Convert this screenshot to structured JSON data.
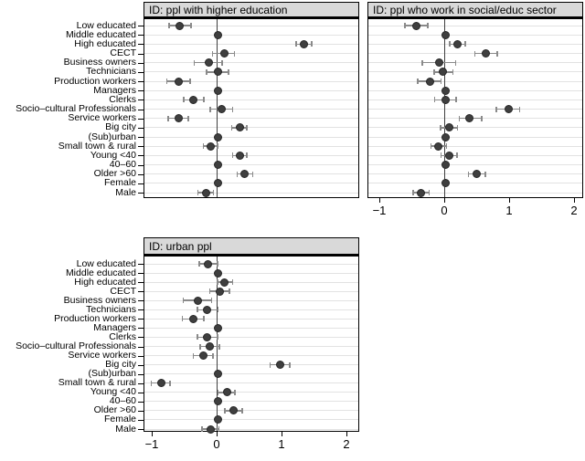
{
  "figure": {
    "background": "#ffffff",
    "panel_header_bg": "#d9d9d9",
    "border_color": "#000000",
    "gridline_color": "#e2e2e2",
    "zero_line_color": "#3f3f3f",
    "ci_color": "#8a8a8a",
    "dot_color": "#3f3f3f"
  },
  "chart_data": {
    "type": "scatter",
    "subtype": "coefficient-dot-whisker",
    "grid": "horizontal",
    "legend": null,
    "xlabel": "",
    "ylabel": "",
    "xlim": [
      -1.1,
      2.2
    ],
    "x_tick_values": [
      -1,
      0,
      1,
      2
    ],
    "x_tick_labels": [
      "−1",
      "0",
      "1",
      "2"
    ],
    "categories": [
      "Low educated",
      "Middle educated",
      "High educated",
      "CECT",
      "Business owners",
      "Technicians",
      "Production workers",
      "Managers",
      "Clerks",
      "Socio–cultural Professionals",
      "Service workers",
      "Big city",
      "(Sub)urban",
      "Small town & rural",
      "Young <40",
      "40–60",
      "Older >60",
      "Female",
      "Male"
    ],
    "panels": [
      {
        "title": "ID: ppl with higher education",
        "show_x_axis": false,
        "show_y_labels": true,
        "estimates": [
          {
            "value": -0.58,
            "lo": -0.75,
            "hi": -0.41
          },
          {
            "value": 0.0,
            "lo": null,
            "hi": null
          },
          {
            "value": 1.33,
            "lo": 1.21,
            "hi": 1.45
          },
          {
            "value": 0.1,
            "lo": -0.08,
            "hi": 0.26
          },
          {
            "value": -0.14,
            "lo": -0.36,
            "hi": 0.07
          },
          {
            "value": 0.0,
            "lo": -0.17,
            "hi": 0.17
          },
          {
            "value": -0.6,
            "lo": -0.78,
            "hi": -0.42
          },
          {
            "value": 0.0,
            "lo": null,
            "hi": null
          },
          {
            "value": -0.37,
            "lo": -0.52,
            "hi": -0.21
          },
          {
            "value": 0.06,
            "lo": -0.11,
            "hi": 0.23
          },
          {
            "value": -0.6,
            "lo": -0.76,
            "hi": -0.45
          },
          {
            "value": 0.34,
            "lo": 0.22,
            "hi": 0.45
          },
          {
            "value": 0.0,
            "lo": null,
            "hi": null
          },
          {
            "value": -0.11,
            "lo": -0.22,
            "hi": 0.0
          },
          {
            "value": 0.34,
            "lo": 0.23,
            "hi": 0.45
          },
          {
            "value": 0.0,
            "lo": null,
            "hi": null
          },
          {
            "value": 0.42,
            "lo": 0.3,
            "hi": 0.54
          },
          {
            "value": 0.0,
            "lo": null,
            "hi": null
          },
          {
            "value": -0.18,
            "lo": -0.3,
            "hi": -0.06
          }
        ]
      },
      {
        "title": "ID: ppl who work in social/educ sector",
        "show_x_axis": true,
        "show_y_labels": false,
        "estimates": [
          {
            "value": -0.44,
            "lo": -0.62,
            "hi": -0.27
          },
          {
            "value": 0.0,
            "lo": null,
            "hi": null
          },
          {
            "value": 0.19,
            "lo": 0.07,
            "hi": 0.31
          },
          {
            "value": 0.63,
            "lo": 0.46,
            "hi": 0.8
          },
          {
            "value": -0.09,
            "lo": -0.35,
            "hi": 0.16
          },
          {
            "value": -0.03,
            "lo": -0.17,
            "hi": 0.12
          },
          {
            "value": -0.23,
            "lo": -0.42,
            "hi": -0.06
          },
          {
            "value": 0.0,
            "lo": null,
            "hi": null
          },
          {
            "value": 0.0,
            "lo": -0.16,
            "hi": 0.17
          },
          {
            "value": 0.98,
            "lo": 0.79,
            "hi": 1.15
          },
          {
            "value": 0.38,
            "lo": 0.22,
            "hi": 0.56
          },
          {
            "value": 0.07,
            "lo": -0.07,
            "hi": 0.19
          },
          {
            "value": 0.0,
            "lo": null,
            "hi": null
          },
          {
            "value": -0.1,
            "lo": -0.22,
            "hi": 0.02
          },
          {
            "value": 0.07,
            "lo": -0.06,
            "hi": 0.18
          },
          {
            "value": 0.0,
            "lo": null,
            "hi": null
          },
          {
            "value": 0.49,
            "lo": 0.36,
            "hi": 0.62
          },
          {
            "value": 0.0,
            "lo": null,
            "hi": null
          },
          {
            "value": -0.38,
            "lo": -0.49,
            "hi": -0.25
          }
        ]
      },
      {
        "title": "ID: urban ppl",
        "show_x_axis": true,
        "show_y_labels": true,
        "estimates": [
          {
            "value": -0.15,
            "lo": -0.28,
            "hi": 0.0
          },
          {
            "value": 0.0,
            "lo": null,
            "hi": null
          },
          {
            "value": 0.11,
            "lo": 0.0,
            "hi": 0.23
          },
          {
            "value": 0.03,
            "lo": -0.12,
            "hi": 0.18
          },
          {
            "value": -0.3,
            "lo": -0.53,
            "hi": -0.09
          },
          {
            "value": -0.16,
            "lo": -0.31,
            "hi": 0.01
          },
          {
            "value": -0.37,
            "lo": -0.54,
            "hi": -0.21
          },
          {
            "value": 0.0,
            "lo": null,
            "hi": null
          },
          {
            "value": -0.16,
            "lo": -0.31,
            "hi": 0.0
          },
          {
            "value": -0.12,
            "lo": -0.27,
            "hi": 0.03
          },
          {
            "value": -0.22,
            "lo": -0.37,
            "hi": -0.07
          },
          {
            "value": 0.96,
            "lo": 0.81,
            "hi": 1.11
          },
          {
            "value": 0.0,
            "lo": null,
            "hi": null
          },
          {
            "value": -0.87,
            "lo": -1.02,
            "hi": -0.73
          },
          {
            "value": 0.15,
            "lo": 0.01,
            "hi": 0.27
          },
          {
            "value": 0.0,
            "lo": null,
            "hi": null
          },
          {
            "value": 0.24,
            "lo": 0.11,
            "hi": 0.38
          },
          {
            "value": 0.0,
            "lo": null,
            "hi": null
          },
          {
            "value": -0.11,
            "lo": -0.24,
            "hi": 0.02
          }
        ]
      }
    ]
  }
}
